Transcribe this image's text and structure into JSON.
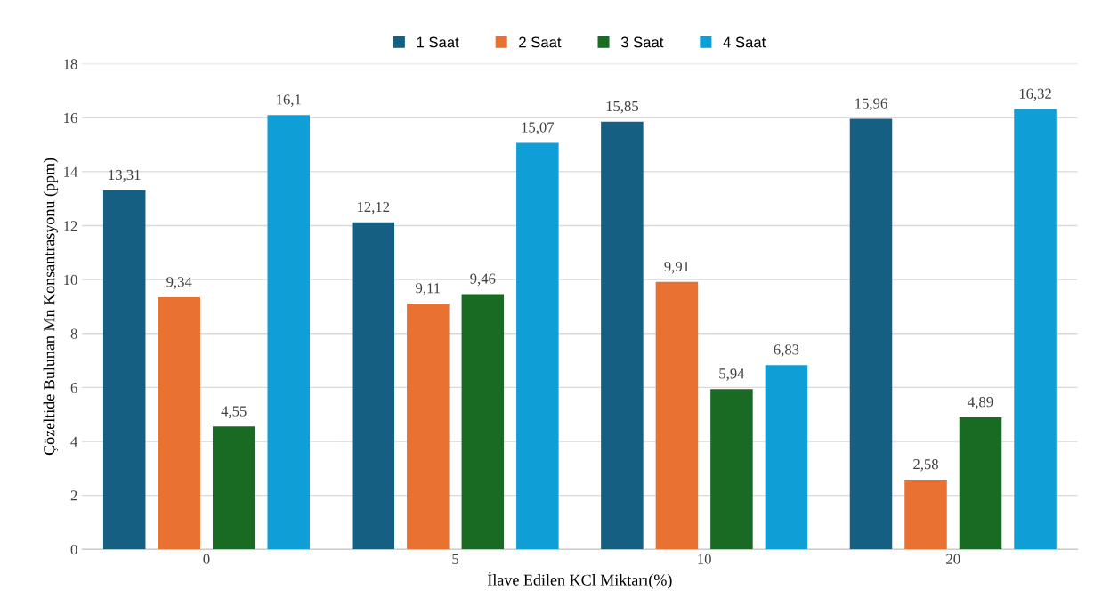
{
  "chart_data": {
    "type": "bar",
    "xlabel": "İlave Edilen KCl Miktarı(%)",
    "ylabel": "Çözeltide Bulunan Mn Konsantrasyonu (ppm)",
    "categories": [
      "0",
      "5",
      "10",
      "20"
    ],
    "series": [
      {
        "name": "1 Saat",
        "color": "#156082",
        "values": [
          13.31,
          12.12,
          15.85,
          15.96
        ],
        "value_labels": [
          "13,31",
          "12,12",
          "15,85",
          "15,96"
        ]
      },
      {
        "name": "2 Saat",
        "color": "#e97132",
        "values": [
          9.34,
          9.11,
          9.91,
          2.58
        ],
        "value_labels": [
          "9,34",
          "9,11",
          "9,91",
          "2,58"
        ]
      },
      {
        "name": "3 Saat",
        "color": "#196b24",
        "values": [
          4.55,
          9.46,
          5.94,
          4.89
        ],
        "value_labels": [
          "4,55",
          "9,46",
          "5,94",
          "4,89"
        ]
      },
      {
        "name": "4 Saat",
        "color": "#0f9ed5",
        "values": [
          16.1,
          15.07,
          6.83,
          16.32
        ],
        "value_labels": [
          "16,1",
          "15,07",
          "6,83",
          "16,32"
        ]
      }
    ],
    "ylim": [
      0,
      18
    ],
    "yticks": [
      0,
      2,
      4,
      6,
      8,
      10,
      12,
      14,
      16,
      18
    ],
    "grid": "y",
    "legend": "top"
  }
}
